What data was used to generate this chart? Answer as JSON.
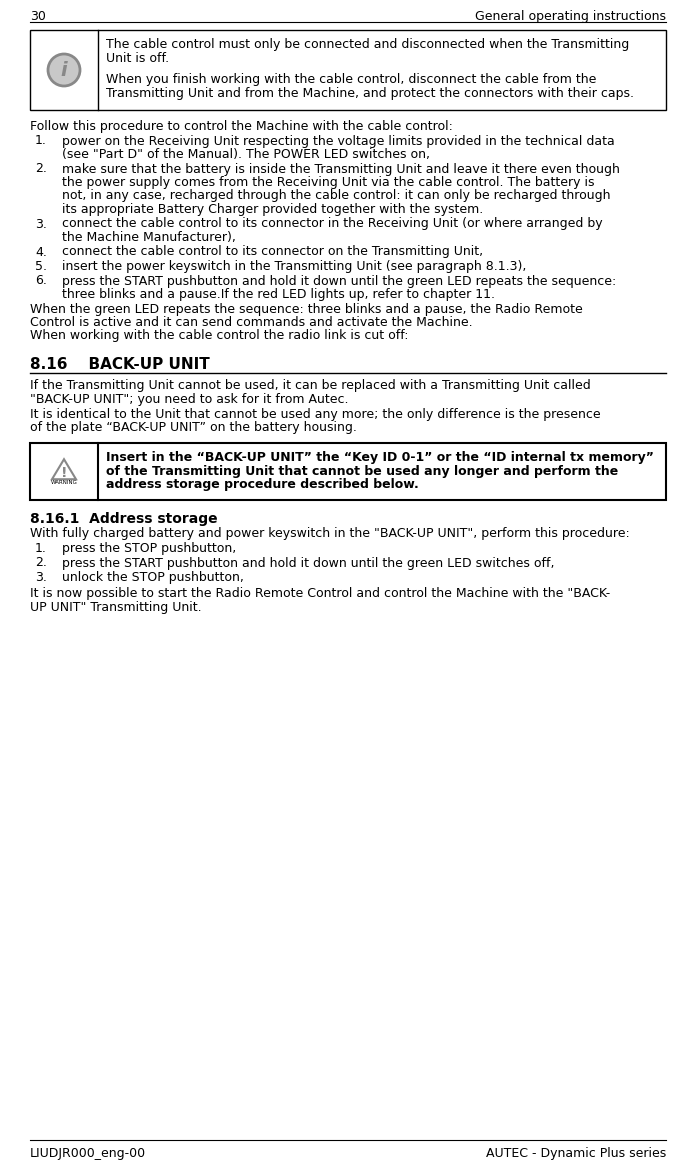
{
  "page_number": "30",
  "header_right": "General operating instructions",
  "footer_left": "LIUDJR000_eng-00",
  "footer_right": "AUTEC - Dynamic Plus series",
  "bg_color": "#ffffff",
  "info_box_lines": [
    "The cable control must only be connected and disconnected when the Transmitting",
    "Unit is off.",
    "",
    "When you finish working with the cable control, disconnect the cable from the",
    "Transmitting Unit and from the Machine, and protect the connectors with their caps."
  ],
  "follow_text": "Follow this procedure to control the Machine with the cable control:",
  "numbered_items": [
    {
      "num": "1.",
      "lines": [
        "power on the Receiving Unit respecting the voltage limits provided in the technical data",
        "(see \"Part D\" of the Manual). The POWER LED switches on,"
      ]
    },
    {
      "num": "2.",
      "lines": [
        "make sure that the battery is inside the Transmitting Unit and leave it there even though",
        "the power supply comes from the Receiving Unit via the cable control. The battery is",
        "not, in any case, recharged through the cable control: it can only be recharged through",
        "its appropriate Battery Charger provided together with the system."
      ]
    },
    {
      "num": "3.",
      "lines": [
        "connect the cable control to its connector in the Receiving Unit (or where arranged by",
        "the Machine Manufacturer),"
      ]
    },
    {
      "num": "4.",
      "lines": [
        "connect the cable control to its connector on the Transmitting Unit,"
      ]
    },
    {
      "num": "5.",
      "lines": [
        "insert the power keyswitch in the Transmitting Unit (see paragraph 8.1.3),"
      ]
    },
    {
      "num": "6.",
      "lines": [
        "press the START pushbutton and hold it down until the green LED repeats the sequence:",
        "three blinks and a pause.If the red LED lights up, refer to chapter 11."
      ]
    }
  ],
  "para1_lines": [
    "When the green LED repeats the sequence: three blinks and a pause, the Radio Remote",
    "Control is active and it can send commands and activate the Machine."
  ],
  "para2": "When working with the cable control the radio link is cut off:",
  "section_title": "8.16    BACK-UP UNIT",
  "section_para1_lines": [
    "If the Transmitting Unit cannot be used, it can be replaced with a Transmitting Unit called",
    "\"BACK-UP UNIT\"; you need to ask for it from Autec."
  ],
  "section_para2_lines": [
    "It is identical to the Unit that cannot be used any more; the only difference is the presence",
    "of the plate “BACK-UP UNIT” on the battery housing."
  ],
  "warning_lines": [
    "Insert in the “BACK-UP UNIT” the “Key ID 0-1” or the “ID internal tx memory”",
    "of the Transmitting Unit that cannot be used any longer and perform the",
    "address storage procedure described below."
  ],
  "subsection_title": "8.16.1  Address storage",
  "with_text": "With fully charged battery and power keyswitch in the \"BACK-UP UNIT\", perform this procedure:",
  "sub_items": [
    {
      "num": "1.",
      "text": "press the STOP pushbutton,"
    },
    {
      "num": "2.",
      "text": "press the START pushbutton and hold it down until the green LED switches off,"
    },
    {
      "num": "3.",
      "text": "unlock the STOP pushbutton,"
    }
  ],
  "final_lines": [
    "It is now possible to start the Radio Remote Control and control the Machine with the \"BACK-",
    "UP UNIT\" Transmitting Unit."
  ]
}
